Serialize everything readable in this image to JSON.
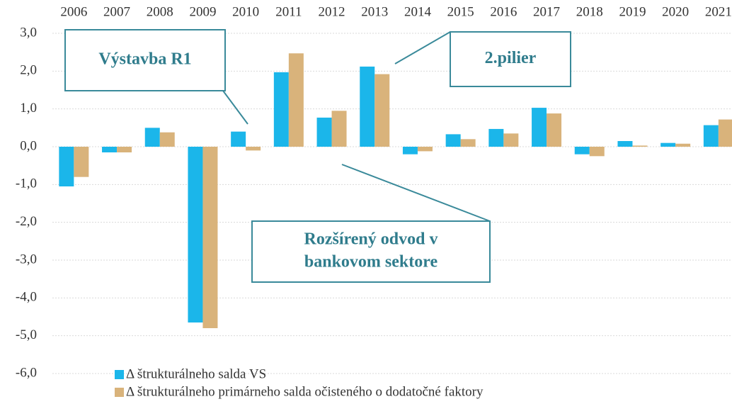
{
  "chart_data": {
    "type": "bar",
    "categories": [
      "2006",
      "2007",
      "2008",
      "2009",
      "2010",
      "2011",
      "2012",
      "2013",
      "2014",
      "2015",
      "2016",
      "2017",
      "2018",
      "2019",
      "2020",
      "2021"
    ],
    "series": [
      {
        "name": "Δ štrukturálneho salda VS",
        "color": "#1bb6ea",
        "values": [
          -1.05,
          -0.15,
          0.5,
          -4.65,
          0.4,
          1.97,
          0.77,
          2.12,
          -0.2,
          0.33,
          0.47,
          1.03,
          -0.2,
          0.15,
          0.1,
          0.57
        ]
      },
      {
        "name": "Δ štrukturálneho primárneho salda očisteného o dodatočné faktory",
        "color": "#d9b37b",
        "values": [
          -0.8,
          -0.15,
          0.38,
          -4.8,
          -0.1,
          2.47,
          0.95,
          1.92,
          -0.12,
          0.2,
          0.35,
          0.88,
          -0.25,
          0.03,
          0.08,
          0.72
        ]
      }
    ],
    "ylim": [
      -6,
      3
    ],
    "yticks": [
      {
        "value": 3,
        "label": "3,0"
      },
      {
        "value": 2,
        "label": "2,0"
      },
      {
        "value": 1,
        "label": "1,0"
      },
      {
        "value": 0,
        "label": "0,0"
      },
      {
        "value": -1,
        "label": "-1,0"
      },
      {
        "value": -2,
        "label": "-2,0"
      },
      {
        "value": -3,
        "label": "-3,0"
      },
      {
        "value": -4,
        "label": "-4,0"
      },
      {
        "value": -5,
        "label": "-5,0"
      },
      {
        "value": -6,
        "label": "-6,0"
      }
    ],
    "grid": true,
    "annotations": [
      {
        "lines": [
          "Výstavba R1"
        ]
      },
      {
        "lines": [
          "2.pilier"
        ]
      },
      {
        "lines": [
          "Rozšírený odvod v",
          "bankovom sektore"
        ]
      }
    ]
  }
}
